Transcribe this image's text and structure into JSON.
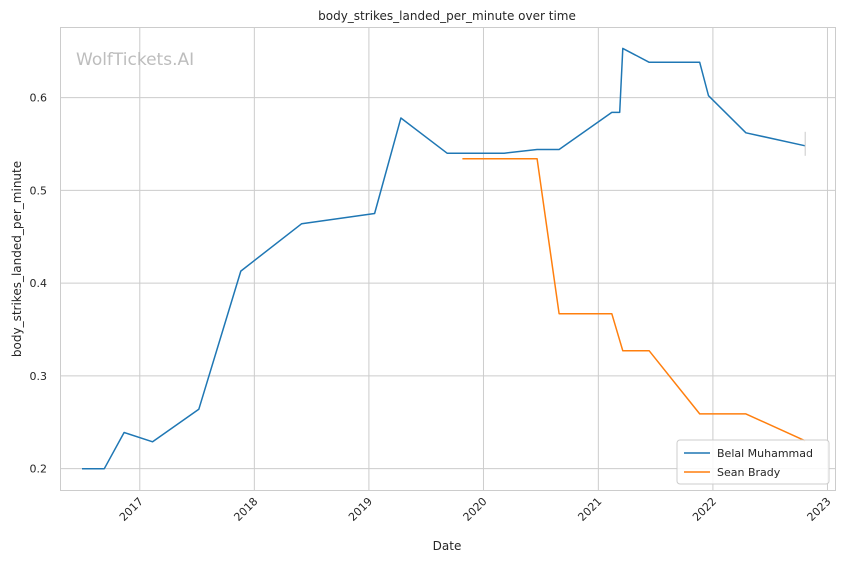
{
  "watermark": "WolfTickets.AI",
  "chart_data": {
    "type": "line",
    "title": "body_strikes_landed_per_minute over time",
    "xlabel": "Date",
    "ylabel": "body_strikes_landed_per_minute",
    "xlim": [
      "2016-04-25",
      "2023-01-25"
    ],
    "ylim": [
      0.177,
      0.675
    ],
    "x_ticks": [
      "2017",
      "2018",
      "2019",
      "2020",
      "2021",
      "2022",
      "2023"
    ],
    "y_ticks": [
      0.2,
      0.3,
      0.4,
      0.5,
      0.6
    ],
    "grid": true,
    "legend_position": "lower-right",
    "series": [
      {
        "name": "Belal Muhammad",
        "color": "#1f77b4",
        "points": [
          {
            "date": "2016-07-01",
            "value": 0.2
          },
          {
            "date": "2016-09-10",
            "value": 0.2
          },
          {
            "date": "2016-11-12",
            "value": 0.239
          },
          {
            "date": "2017-02-11",
            "value": 0.229
          },
          {
            "date": "2017-07-08",
            "value": 0.264
          },
          {
            "date": "2017-11-19",
            "value": 0.413
          },
          {
            "date": "2018-06-01",
            "value": 0.464
          },
          {
            "date": "2019-01-19",
            "value": 0.475
          },
          {
            "date": "2019-04-13",
            "value": 0.578
          },
          {
            "date": "2019-09-07",
            "value": 0.54
          },
          {
            "date": "2020-03-07",
            "value": 0.54
          },
          {
            "date": "2020-06-20",
            "value": 0.544
          },
          {
            "date": "2020-08-29",
            "value": 0.544
          },
          {
            "date": "2021-02-13",
            "value": 0.584
          },
          {
            "date": "2021-03-10",
            "value": 0.584
          },
          {
            "date": "2021-03-20",
            "value": 0.653
          },
          {
            "date": "2021-06-12",
            "value": 0.638
          },
          {
            "date": "2021-11-20",
            "value": 0.638
          },
          {
            "date": "2021-12-18",
            "value": 0.602
          },
          {
            "date": "2022-04-16",
            "value": 0.562
          },
          {
            "date": "2022-10-22",
            "value": 0.548
          }
        ]
      },
      {
        "name": "Sean Brady",
        "color": "#ff7f0e",
        "points": [
          {
            "date": "2019-10-26",
            "value": 0.534
          },
          {
            "date": "2020-06-20",
            "value": 0.534
          },
          {
            "date": "2020-08-29",
            "value": 0.367
          },
          {
            "date": "2021-02-13",
            "value": 0.367
          },
          {
            "date": "2021-03-20",
            "value": 0.327
          },
          {
            "date": "2021-06-12",
            "value": 0.327
          },
          {
            "date": "2021-11-20",
            "value": 0.259
          },
          {
            "date": "2022-04-16",
            "value": 0.259
          },
          {
            "date": "2022-10-22",
            "value": 0.23
          }
        ]
      }
    ]
  }
}
